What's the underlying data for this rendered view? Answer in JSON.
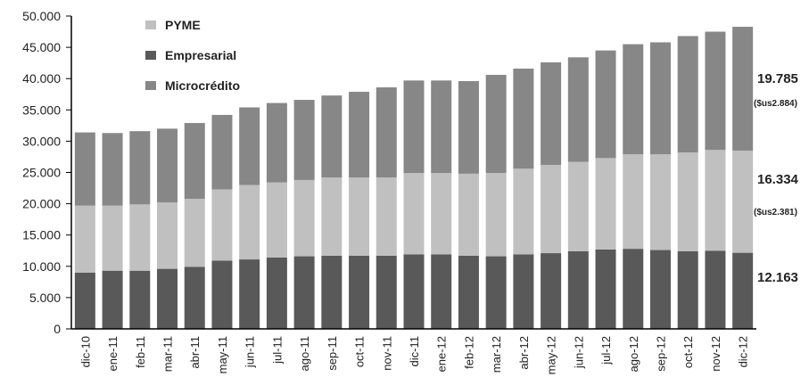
{
  "chart_data": {
    "type": "bar",
    "stacked": true,
    "categories": [
      "dic-10",
      "ene-11",
      "feb-11",
      "mar-11",
      "abr-11",
      "may-11",
      "jun-11",
      "jul-11",
      "ago-11",
      "sep-11",
      "oct-11",
      "nov-11",
      "dic-11",
      "ene-12",
      "feb-12",
      "mar-12",
      "abr-12",
      "may-12",
      "jun-12",
      "jul-12",
      "ago-12",
      "sep-12",
      "oct-12",
      "nov-12",
      "dic-12"
    ],
    "series": [
      {
        "name": "Empresarial",
        "color": "#595959",
        "values": [
          9000,
          9300,
          9300,
          9600,
          9900,
          10900,
          11100,
          11400,
          11600,
          11700,
          11700,
          11700,
          11900,
          11900,
          11700,
          11600,
          11900,
          12100,
          12400,
          12700,
          12800,
          12600,
          12400,
          12500,
          12163
        ]
      },
      {
        "name": "PYME",
        "color": "#c0c0c0",
        "values": [
          10700,
          10400,
          10600,
          10600,
          10900,
          11400,
          11900,
          12000,
          12200,
          12500,
          12500,
          12500,
          13000,
          13000,
          13100,
          13300,
          13700,
          14100,
          14300,
          14600,
          15100,
          15300,
          15800,
          16100,
          16334
        ]
      },
      {
        "name": "Microcrédito",
        "color": "#878787",
        "values": [
          11700,
          11600,
          11700,
          11800,
          12100,
          11900,
          12400,
          12700,
          12800,
          13100,
          13700,
          14400,
          14800,
          14800,
          14800,
          15700,
          16000,
          16400,
          16700,
          17200,
          17600,
          17900,
          18600,
          18900,
          19785
        ]
      }
    ],
    "legend_order": [
      "PYME",
      "Empresarial",
      "Microcrédito"
    ],
    "legend_position": "top-left",
    "ylim": [
      0,
      50000
    ],
    "yticks": [
      "0",
      "5.000",
      "10.000",
      "15.000",
      "20.000",
      "25.000",
      "30.000",
      "35.000",
      "40.000",
      "45.000",
      "50.000"
    ],
    "grid": false,
    "annotations": [
      {
        "series": "Microcrédito",
        "value": "19.785",
        "note": "($us2.884)"
      },
      {
        "series": "PYME",
        "value": "16.334",
        "note": "($us2.381)"
      },
      {
        "series": "Empresarial",
        "value": "12.163",
        "note": ""
      }
    ]
  }
}
